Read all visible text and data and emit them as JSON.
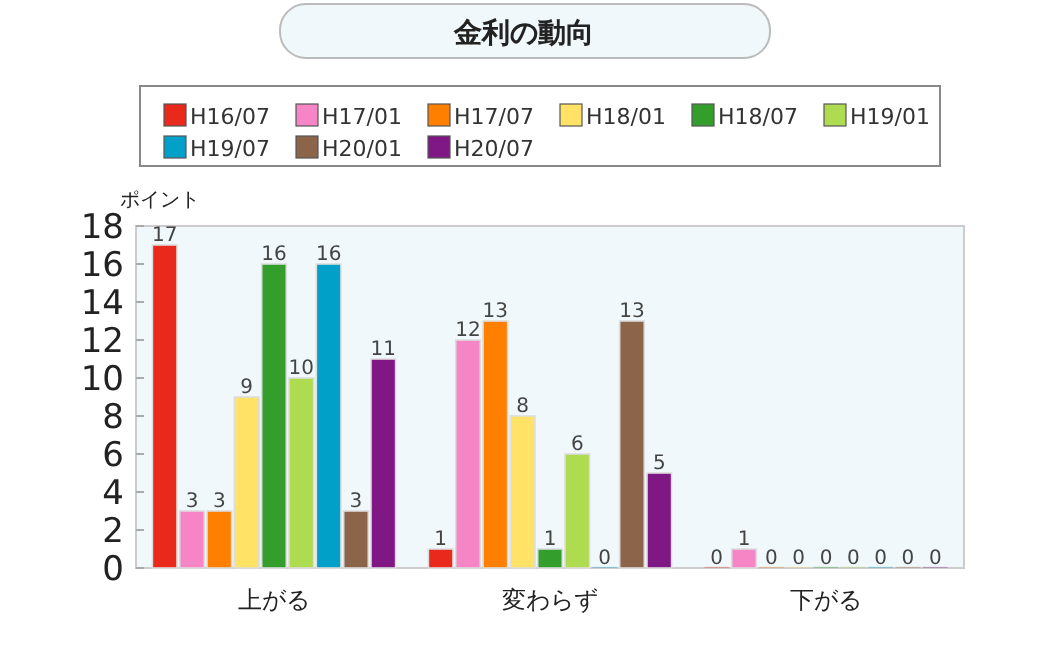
{
  "chart_data": {
    "type": "bar",
    "title": "金利の動向",
    "ylabel": "ポイント",
    "categories": [
      "上がる",
      "変わらず",
      "下がる"
    ],
    "series": [
      {
        "name": "H16/07",
        "color": "#e8291c",
        "values": [
          17,
          1,
          0
        ]
      },
      {
        "name": "H17/01",
        "color": "#f585c5",
        "values": [
          3,
          12,
          1
        ]
      },
      {
        "name": "H17/07",
        "color": "#ff8000",
        "values": [
          3,
          13,
          0
        ]
      },
      {
        "name": "H18/01",
        "color": "#ffe266",
        "values": [
          9,
          8,
          0
        ]
      },
      {
        "name": "H18/07",
        "color": "#339e2c",
        "values": [
          16,
          1,
          0
        ]
      },
      {
        "name": "H19/01",
        "color": "#aedb4f",
        "values": [
          10,
          6,
          0
        ]
      },
      {
        "name": "H19/07",
        "color": "#00a0c8",
        "values": [
          16,
          0,
          0
        ]
      },
      {
        "name": "H20/01",
        "color": "#8b644a",
        "values": [
          3,
          13,
          0
        ]
      },
      {
        "name": "H20/07",
        "color": "#7f1784",
        "values": [
          11,
          5,
          0
        ]
      }
    ],
    "ylim": [
      0,
      18
    ],
    "yticks": [
      0,
      2,
      4,
      6,
      8,
      10,
      12,
      14,
      16,
      18
    ],
    "grid": false,
    "legend": "top",
    "data_labels": true
  }
}
